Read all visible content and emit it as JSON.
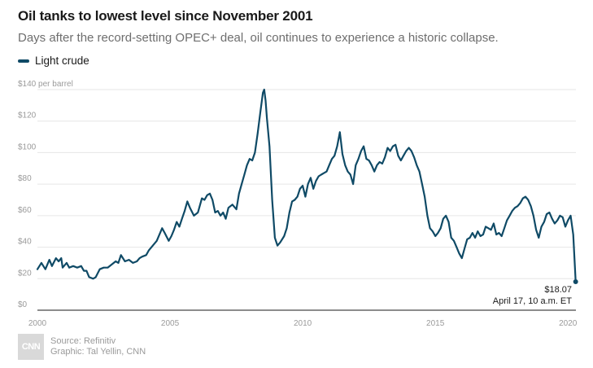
{
  "header": {
    "title": "Oil tanks to lowest level since November 2001",
    "subtitle": "Days after the record-setting OPEC+ deal, oil continues to experience a historic collapse."
  },
  "legend": {
    "label": "Light crude",
    "color": "#0f4a66"
  },
  "annotation": {
    "value": "$18.07",
    "date": "April 17, 10 a.m. ET"
  },
  "footer": {
    "logo_text": "CNN",
    "source": "Source: Refinitiv",
    "graphic": "Graphic: Tal Yellin, CNN"
  },
  "colors": {
    "line": "#0f4a66",
    "grid": "#e6e6e6",
    "axis_text": "#9a9a9a",
    "baseline": "#1a1a1a"
  },
  "chart_data": {
    "type": "line",
    "title": "Oil tanks to lowest level since November 2001",
    "xlabel": "",
    "ylabel": "",
    "xlim": [
      2000.0,
      2020.3
    ],
    "ylim": [
      0,
      140
    ],
    "grid": true,
    "legend_position": "top-left",
    "y_ticks": [
      {
        "value": 0,
        "label": "$0"
      },
      {
        "value": 20,
        "label": "$20"
      },
      {
        "value": 40,
        "label": "$40"
      },
      {
        "value": 60,
        "label": "$60"
      },
      {
        "value": 80,
        "label": "$80"
      },
      {
        "value": 100,
        "label": "$100"
      },
      {
        "value": 120,
        "label": "$120"
      },
      {
        "value": 140,
        "label": "$140 per barrel"
      }
    ],
    "x_ticks": [
      {
        "value": 2000,
        "label": "2000"
      },
      {
        "value": 2005,
        "label": "2005"
      },
      {
        "value": 2010,
        "label": "2010"
      },
      {
        "value": 2015,
        "label": "2015"
      },
      {
        "value": 2020,
        "label": "2020"
      }
    ],
    "series": [
      {
        "name": "Light crude",
        "x": [
          2000.0,
          2000.15,
          2000.3,
          2000.45,
          2000.55,
          2000.7,
          2000.8,
          2000.9,
          2000.95,
          2001.1,
          2001.2,
          2001.35,
          2001.5,
          2001.65,
          2001.75,
          2001.85,
          2001.95,
          2002.1,
          2002.2,
          2002.35,
          2002.5,
          2002.65,
          2002.8,
          2002.95,
          2003.05,
          2003.15,
          2003.3,
          2003.45,
          2003.6,
          2003.75,
          2003.85,
          2003.95,
          2004.1,
          2004.2,
          2004.35,
          2004.5,
          2004.6,
          2004.7,
          2004.8,
          2004.95,
          2005.05,
          2005.15,
          2005.25,
          2005.35,
          2005.45,
          2005.55,
          2005.65,
          2005.75,
          2005.9,
          2006.05,
          2006.2,
          2006.3,
          2006.4,
          2006.5,
          2006.6,
          2006.7,
          2006.8,
          2006.9,
          2007.0,
          2007.1,
          2007.2,
          2007.35,
          2007.5,
          2007.6,
          2007.7,
          2007.8,
          2007.9,
          2008.0,
          2008.1,
          2008.2,
          2008.3,
          2008.4,
          2008.5,
          2008.55,
          2008.6,
          2008.65,
          2008.75,
          2008.85,
          2008.95,
          2009.05,
          2009.15,
          2009.3,
          2009.4,
          2009.5,
          2009.6,
          2009.7,
          2009.8,
          2009.9,
          2010.0,
          2010.1,
          2010.2,
          2010.3,
          2010.4,
          2010.5,
          2010.6,
          2010.7,
          2010.8,
          2010.9,
          2011.0,
          2011.1,
          2011.2,
          2011.3,
          2011.4,
          2011.5,
          2011.6,
          2011.7,
          2011.8,
          2011.9,
          2012.0,
          2012.1,
          2012.2,
          2012.3,
          2012.4,
          2012.5,
          2012.6,
          2012.7,
          2012.8,
          2012.9,
          2013.0,
          2013.1,
          2013.2,
          2013.3,
          2013.4,
          2013.5,
          2013.6,
          2013.7,
          2013.8,
          2013.9,
          2014.0,
          2014.1,
          2014.2,
          2014.3,
          2014.4,
          2014.5,
          2014.6,
          2014.7,
          2014.8,
          2014.9,
          2015.0,
          2015.1,
          2015.2,
          2015.3,
          2015.4,
          2015.5,
          2015.6,
          2015.7,
          2015.8,
          2015.9,
          2016.0,
          2016.1,
          2016.2,
          2016.3,
          2016.4,
          2016.5,
          2016.6,
          2016.7,
          2016.8,
          2016.9,
          2017.0,
          2017.1,
          2017.2,
          2017.3,
          2017.4,
          2017.5,
          2017.6,
          2017.7,
          2017.8,
          2017.9,
          2018.0,
          2018.1,
          2018.2,
          2018.3,
          2018.4,
          2018.5,
          2018.6,
          2018.7,
          2018.8,
          2018.9,
          2019.0,
          2019.1,
          2019.2,
          2019.3,
          2019.4,
          2019.5,
          2019.6,
          2019.7,
          2019.8,
          2019.9,
          2020.0,
          2020.1,
          2020.2,
          2020.29
        ],
        "y": [
          26,
          30,
          26,
          32,
          28,
          33,
          31,
          33,
          27,
          30,
          27,
          28,
          27,
          28,
          25,
          25,
          21,
          20,
          21,
          26,
          27,
          27,
          29,
          31,
          30,
          35,
          31,
          32,
          30,
          31,
          33,
          34,
          35,
          38,
          41,
          44,
          48,
          52,
          49,
          44,
          47,
          51,
          56,
          53,
          58,
          63,
          69,
          65,
          60,
          62,
          71,
          70,
          73,
          74,
          70,
          62,
          63,
          60,
          62,
          58,
          65,
          67,
          64,
          74,
          80,
          86,
          92,
          96,
          95,
          100,
          112,
          125,
          138,
          140,
          133,
          122,
          104,
          70,
          46,
          41,
          43,
          47,
          52,
          62,
          69,
          70,
          72,
          77,
          79,
          72,
          80,
          84,
          77,
          82,
          85,
          86,
          87,
          88,
          92,
          96,
          98,
          104,
          113,
          99,
          92,
          88,
          86,
          80,
          92,
          96,
          101,
          104,
          96,
          95,
          92,
          88,
          92,
          94,
          93,
          97,
          103,
          101,
          104,
          105,
          98,
          95,
          98,
          101,
          103,
          101,
          97,
          92,
          88,
          80,
          72,
          60,
          52,
          50,
          47,
          49,
          52,
          58,
          60,
          56,
          46,
          44,
          40,
          36,
          33,
          39,
          45,
          46,
          49,
          46,
          50,
          47,
          48,
          53,
          52,
          51,
          55,
          48,
          49,
          47,
          52,
          57,
          60,
          63,
          65,
          66,
          68,
          71,
          72,
          70,
          66,
          60,
          51,
          46,
          53,
          56,
          61,
          62,
          58,
          55,
          57,
          60,
          59,
          53,
          57,
          60,
          48,
          18.07
        ]
      }
    ]
  }
}
